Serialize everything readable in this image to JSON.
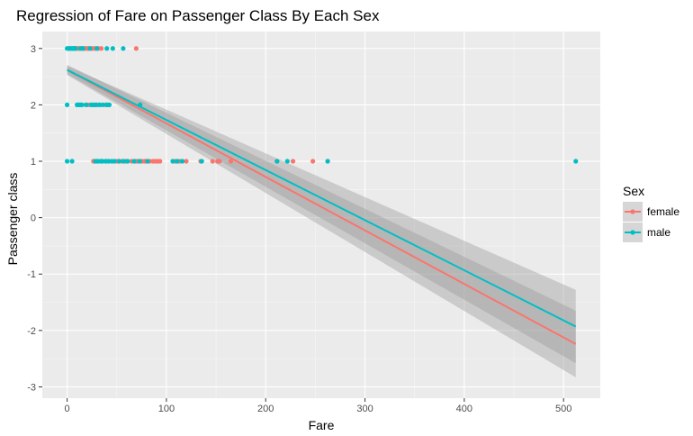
{
  "chart_data": {
    "type": "scatter",
    "title": "Regression of Fare on Passenger Class By Each Sex",
    "xlabel": "Fare",
    "ylabel": "Passenger class",
    "xlim": [
      -25,
      537
    ],
    "ylim": [
      -3.2,
      3.3
    ],
    "x_ticks": [
      0,
      100,
      200,
      300,
      400,
      500
    ],
    "y_ticks": [
      -3,
      -2,
      -1,
      0,
      1,
      2,
      3
    ],
    "grid": true,
    "legend": {
      "title": "Sex",
      "position": "right"
    },
    "series": [
      {
        "name": "female",
        "color": "#f8766d",
        "points": [
          [
            7.2,
            3
          ],
          [
            7.9,
            3
          ],
          [
            8.05,
            3
          ],
          [
            9.5,
            3
          ],
          [
            10.5,
            3
          ],
          [
            11.1,
            3
          ],
          [
            12.3,
            3
          ],
          [
            14.5,
            3
          ],
          [
            15.5,
            3
          ],
          [
            16.1,
            3
          ],
          [
            18.0,
            3
          ],
          [
            19.3,
            3
          ],
          [
            20.5,
            3
          ],
          [
            22.0,
            3
          ],
          [
            24.2,
            3
          ],
          [
            25.5,
            3
          ],
          [
            27.9,
            3
          ],
          [
            29.1,
            3
          ],
          [
            31.3,
            3
          ],
          [
            34.4,
            3
          ],
          [
            69.6,
            3
          ],
          [
            10.5,
            2
          ],
          [
            13.0,
            2
          ],
          [
            21.0,
            2
          ],
          [
            26.0,
            2
          ],
          [
            30.0,
            2
          ],
          [
            33.0,
            2
          ],
          [
            39.0,
            2
          ],
          [
            41.6,
            2
          ],
          [
            26.5,
            1
          ],
          [
            27.7,
            1
          ],
          [
            30.0,
            1
          ],
          [
            35.0,
            1
          ],
          [
            40.0,
            1
          ],
          [
            50.0,
            1
          ],
          [
            52.0,
            1
          ],
          [
            55.4,
            1
          ],
          [
            59.4,
            1
          ],
          [
            65.0,
            1
          ],
          [
            69.3,
            1
          ],
          [
            71.3,
            1
          ],
          [
            75.3,
            1
          ],
          [
            77.9,
            1
          ],
          [
            79.6,
            1
          ],
          [
            83.2,
            1
          ],
          [
            86.5,
            1
          ],
          [
            89.1,
            1
          ],
          [
            91.1,
            1
          ],
          [
            93.5,
            1
          ],
          [
            108.9,
            1
          ],
          [
            113.3,
            1
          ],
          [
            120.0,
            1
          ],
          [
            134.5,
            1
          ],
          [
            146.5,
            1
          ],
          [
            151.6,
            1
          ],
          [
            153.5,
            1
          ],
          [
            164.9,
            1
          ],
          [
            211.3,
            1
          ],
          [
            227.5,
            1
          ],
          [
            247.5,
            1
          ],
          [
            262.4,
            1
          ]
        ],
        "regression": {
          "x": [
            0,
            512.3
          ],
          "y": [
            2.62,
            -2.24
          ],
          "ci_low": [
            2.53,
            -2.83
          ],
          "ci_high": [
            2.71,
            -1.65
          ]
        }
      },
      {
        "name": "male",
        "color": "#00bfc4",
        "points": [
          [
            0,
            3
          ],
          [
            1.5,
            3
          ],
          [
            2.5,
            3
          ],
          [
            3.5,
            3
          ],
          [
            4.5,
            3
          ],
          [
            5.5,
            3
          ],
          [
            6.5,
            3
          ],
          [
            7.0,
            3
          ],
          [
            7.5,
            3
          ],
          [
            8.5,
            3
          ],
          [
            13.5,
            3
          ],
          [
            16.0,
            3
          ],
          [
            23.0,
            3
          ],
          [
            30.0,
            3
          ],
          [
            40.0,
            3
          ],
          [
            46.0,
            3
          ],
          [
            56.5,
            3
          ],
          [
            0,
            2
          ],
          [
            10.0,
            2
          ],
          [
            11.5,
            2
          ],
          [
            13.5,
            2
          ],
          [
            15.0,
            2
          ],
          [
            19.0,
            2
          ],
          [
            24.0,
            2
          ],
          [
            27.0,
            2
          ],
          [
            29.0,
            2
          ],
          [
            32.5,
            2
          ],
          [
            36.0,
            2
          ],
          [
            40.0,
            2
          ],
          [
            42.5,
            2
          ],
          [
            73.5,
            2
          ],
          [
            0,
            1
          ],
          [
            5.0,
            1
          ],
          [
            28.5,
            1
          ],
          [
            31.0,
            1
          ],
          [
            33.5,
            1
          ],
          [
            35.5,
            1
          ],
          [
            38.5,
            1
          ],
          [
            42.0,
            1
          ],
          [
            45.0,
            1
          ],
          [
            47.5,
            1
          ],
          [
            52.5,
            1
          ],
          [
            57.0,
            1
          ],
          [
            61.0,
            1
          ],
          [
            67.5,
            1
          ],
          [
            73.0,
            1
          ],
          [
            81.0,
            1
          ],
          [
            106.4,
            1
          ],
          [
            110.9,
            1
          ],
          [
            116.0,
            1
          ],
          [
            135.6,
            1
          ],
          [
            211.5,
            1
          ],
          [
            221.8,
            1
          ],
          [
            262.4,
            1
          ],
          [
            512.3,
            1
          ]
        ],
        "regression": {
          "x": [
            0,
            512.3
          ],
          "y": [
            2.62,
            -1.93
          ],
          "ci_low": [
            2.55,
            -2.58
          ],
          "ci_high": [
            2.69,
            -1.28
          ]
        }
      }
    ]
  }
}
